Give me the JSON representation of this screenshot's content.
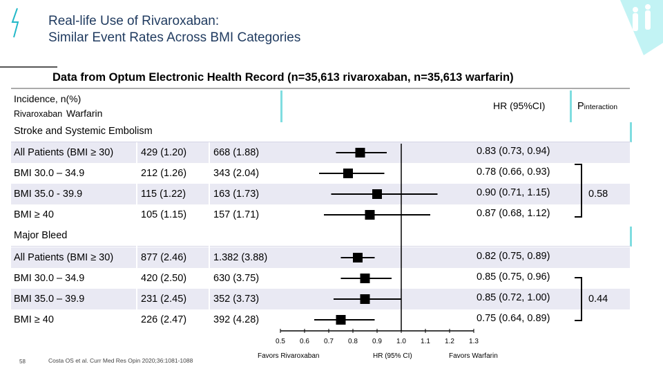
{
  "title_line1": "Real-life Use of Rivaroxaban:",
  "title_line2": "Similar Event Rates Across BMI Categories",
  "subtitle": "Data from Optum Electronic Health Record (n=35,613 rivaroxaban, n=35,613 warfarin)",
  "header": {
    "incidence": "Incidence, n(%)",
    "rivaroxaban": "Rivaroxaban",
    "warfarin": "Warfarin",
    "hr": "HR (95%CI)",
    "p_main": "P",
    "p_sub": "interaction"
  },
  "sections": [
    {
      "label": "Stroke and Systemic Embolism",
      "p_value": "0.58",
      "rows": [
        {
          "category": "All Patients (BMI ≥ 30)",
          "riva": "429 (1.20)",
          "warf": "668 (1.88)",
          "hr_text": "0.83 (0.73, 0.94)",
          "hr": 0.83,
          "lo": 0.73,
          "hi": 0.94
        },
        {
          "category": "BMI 30.0 – 34.9",
          "riva": "212 (1.26)",
          "warf": "343 (2.04)",
          "hr_text": "0.78 (0.66, 0.93)",
          "hr": 0.78,
          "lo": 0.66,
          "hi": 0.93
        },
        {
          "category": "BMI 35.0 - 39.9",
          "riva": "115 (1.22)",
          "warf": "163 (1.73)",
          "hr_text": "0.90 (0.71, 1.15)",
          "hr": 0.9,
          "lo": 0.71,
          "hi": 1.15
        },
        {
          "category": "BMI ≥ 40",
          "riva": "105 (1.15)",
          "warf": "157 (1.71)",
          "hr_text": "0.87 (0.68, 1.12)",
          "hr": 0.87,
          "lo": 0.68,
          "hi": 1.12
        }
      ]
    },
    {
      "label": "Major Bleed",
      "p_value": "0.44",
      "rows": [
        {
          "category": "All Patients (BMI ≥ 30)",
          "riva": "877 (2.46)",
          "warf": "1.382 (3.88)",
          "hr_text": "0.82 (0.75, 0.89)",
          "hr": 0.82,
          "lo": 0.75,
          "hi": 0.89
        },
        {
          "category": "BMI 30.0 – 34.9",
          "riva": "420 (2.50)",
          "warf": "630 (3.75)",
          "hr_text": "0.85 (0.75, 0.96)",
          "hr": 0.85,
          "lo": 0.75,
          "hi": 0.96
        },
        {
          "category": "BMI 35.0 – 39.9",
          "riva": "231 (2.45)",
          "warf": "352 (3.73)",
          "hr_text": "0.85 (0.72, 1.00)",
          "hr": 0.85,
          "lo": 0.72,
          "hi": 1.0
        },
        {
          "category": "BMI ≥ 40",
          "riva": "226 (2.47)",
          "warf": "392 (4.28)",
          "hr_text": "0.75 (0.64, 0.89)",
          "hr": 0.75,
          "lo": 0.64,
          "hi": 0.89
        }
      ]
    }
  ],
  "chart_data": {
    "type": "forest",
    "x_ticks": [
      "0.5",
      "0.6",
      "0.7",
      "0.8",
      "0.9",
      "1.0",
      "1.1",
      "1.2",
      "1.3"
    ],
    "x_min": 0.5,
    "x_max": 1.3,
    "reference_line": 1.0,
    "xlabel": "HR (95% CI)",
    "favors_left": "Favors Rivaroxaban",
    "favors_right": "Favors Warfarin"
  },
  "footer": {
    "slide_number": "58",
    "citation": "Costa OS et al. Curr Med Res Opin 2020;36:1081-1088"
  },
  "colors": {
    "title": "#1f3a5f",
    "accent": "#7fdde0",
    "row_shade": "#e9e9f3",
    "logo": "#22b8c8"
  }
}
